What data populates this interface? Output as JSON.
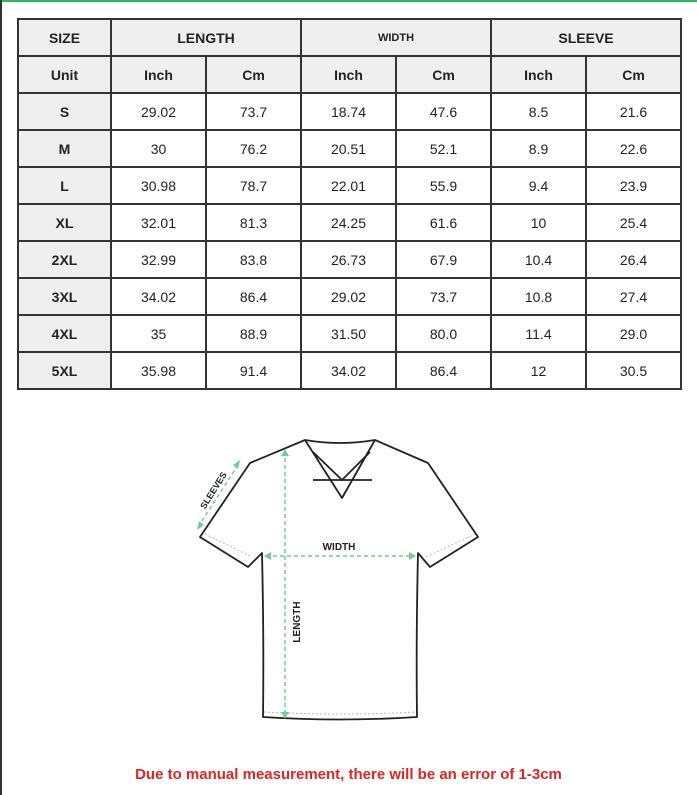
{
  "header": {
    "size": "SIZE",
    "groups": [
      "LENGTH",
      "WIDTH",
      "SLEEVE"
    ]
  },
  "units": {
    "label": "Unit",
    "inch": "Inch",
    "cm": "Cm"
  },
  "rows": [
    {
      "size": "S",
      "vals": [
        "29.02",
        "73.7",
        "18.74",
        "47.6",
        "8.5",
        "21.6"
      ]
    },
    {
      "size": "M",
      "vals": [
        "30",
        "76.2",
        "20.51",
        "52.1",
        "8.9",
        "22.6"
      ]
    },
    {
      "size": "L",
      "vals": [
        "30.98",
        "78.7",
        "22.01",
        "55.9",
        "9.4",
        "23.9"
      ]
    },
    {
      "size": "XL",
      "vals": [
        "32.01",
        "81.3",
        "24.25",
        "61.6",
        "10",
        "25.4"
      ]
    },
    {
      "size": "2XL",
      "vals": [
        "32.99",
        "83.8",
        "26.73",
        "67.9",
        "10.4",
        "26.4"
      ]
    },
    {
      "size": "3XL",
      "vals": [
        "34.02",
        "86.4",
        "29.02",
        "73.7",
        "10.8",
        "27.4"
      ]
    },
    {
      "size": "4XL",
      "vals": [
        "35",
        "88.9",
        "31.50",
        "80.0",
        "11.4",
        "29.0"
      ]
    },
    {
      "size": "5XL",
      "vals": [
        "35.98",
        "91.4",
        "34.02",
        "86.4",
        "12",
        "30.5"
      ]
    }
  ],
  "diagram": {
    "sleeves": "SLEEVES",
    "width": "WIDTH",
    "length": "LENGTH"
  },
  "note": "Due to manual measurement, there will be an error of 1-3cm",
  "colors": {
    "arrow": "#6fcf8f",
    "note": "#e0241f",
    "header_bg": "#efefef"
  }
}
